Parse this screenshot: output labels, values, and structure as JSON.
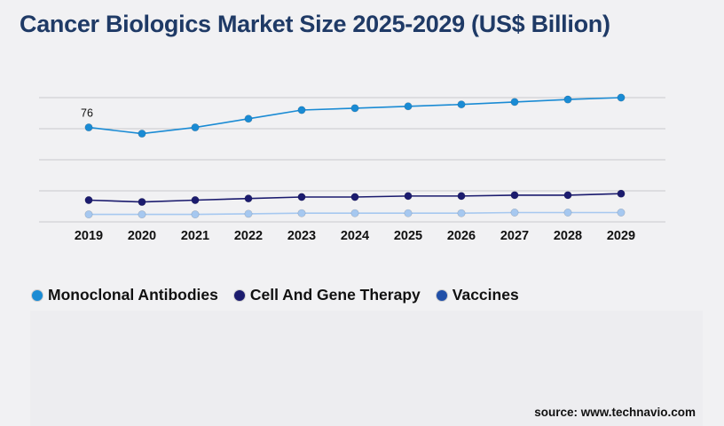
{
  "title": "Cancer Biologics Market Size 2025-2029 (US$ Billion)",
  "source": "source: www.technavio.com",
  "chart_data": {
    "type": "line",
    "title": "Cancer Biologics Market Size 2025-2029 (US$ Billion)",
    "x": [
      "2019",
      "2020",
      "2021",
      "2022",
      "2023",
      "2024",
      "2025",
      "2026",
      "2027",
      "2028",
      "2029"
    ],
    "ylim": [
      0,
      100
    ],
    "grid": true,
    "legend_position": "bottom-left",
    "series": [
      {
        "name": "Monoclonal Antibodies",
        "color": "#1a8bd4",
        "values": [
          76,
          71,
          76,
          83,
          90,
          91.5,
          93,
          94.5,
          96.5,
          98.5,
          100
        ]
      },
      {
        "name": "Cell And Gene Therapy",
        "color": "#1b1b6e",
        "values": [
          17.5,
          16,
          17.5,
          18.8,
          20,
          20,
          20.8,
          20.8,
          21.5,
          21.5,
          22.7
        ]
      },
      {
        "name": "Vaccines",
        "color": "#a6c8f0",
        "legend_color": "#2150a8",
        "values": [
          6,
          6,
          6,
          6.5,
          7,
          7,
          7,
          7,
          7.5,
          7.5,
          7.5
        ]
      }
    ],
    "data_labels": [
      {
        "series": "Monoclonal Antibodies",
        "x": "2019",
        "text": "76"
      }
    ]
  }
}
